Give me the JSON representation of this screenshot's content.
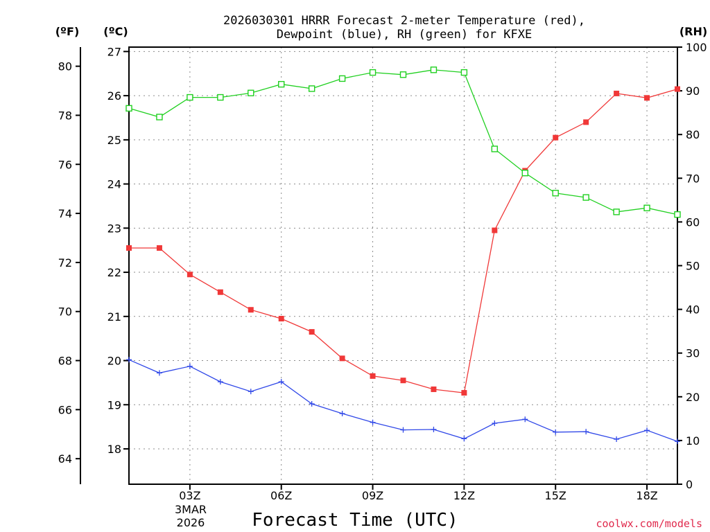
{
  "chart_data": {
    "type": "line",
    "title_line1": "2026030301 HRRR Forecast 2-meter Temperature (red),",
    "title_line2": "Dewpoint (blue), RH (green) for KFXE",
    "xlabel": "Forecast Time (UTC)",
    "credit": "coolwx.com/models",
    "left_unit_f": "(ºF)",
    "left_unit_c": "(ºC)",
    "right_unit": "(RH)",
    "x": [
      1,
      2,
      3,
      4,
      5,
      6,
      7,
      8,
      9,
      10,
      11,
      12,
      13,
      14,
      15,
      16,
      17,
      18,
      19
    ],
    "xlim": [
      1,
      19
    ],
    "x_ticks": [
      {
        "x": 3,
        "label": "03Z"
      },
      {
        "x": 6,
        "label": "06Z"
      },
      {
        "x": 9,
        "label": "09Z"
      },
      {
        "x": 12,
        "label": "12Z"
      },
      {
        "x": 15,
        "label": "15Z"
      },
      {
        "x": 18,
        "label": "18Z"
      }
    ],
    "date_label_1": "3MAR",
    "date_label_2": "2026",
    "celsius_axis": {
      "ylim": [
        17.2,
        27.1
      ],
      "ticks": [
        18,
        19,
        20,
        21,
        22,
        23,
        24,
        25,
        26,
        27
      ]
    },
    "fahrenheit_axis": {
      "ticks": [
        64,
        66,
        68,
        70,
        72,
        74,
        76,
        78,
        80
      ]
    },
    "rh_axis": {
      "ylim": [
        0,
        100
      ],
      "ticks": [
        0,
        10,
        20,
        30,
        40,
        50,
        60,
        70,
        80,
        90,
        100
      ]
    },
    "series": [
      {
        "name": "Temperature",
        "axis": "celsius",
        "color": "#f03838",
        "marker": "filled-square",
        "values": [
          22.55,
          22.55,
          21.95,
          21.55,
          21.15,
          20.95,
          20.65,
          20.05,
          19.65,
          19.55,
          19.35,
          19.27,
          22.95,
          24.3,
          25.05,
          25.4,
          26.05,
          25.95,
          26.15
        ]
      },
      {
        "name": "Dewpoint",
        "axis": "celsius",
        "color": "#3048e8",
        "marker": "plus",
        "values": [
          20.02,
          19.72,
          19.87,
          19.52,
          19.3,
          19.52,
          19.02,
          18.8,
          18.6,
          18.43,
          18.44,
          18.23,
          18.58,
          18.67,
          18.38,
          18.39,
          18.22,
          18.42,
          18.17
        ]
      },
      {
        "name": "RH",
        "axis": "rh",
        "color": "#20d020",
        "marker": "open-square",
        "values": [
          86,
          84,
          88.5,
          88.5,
          89.5,
          91.5,
          90.5,
          92.8,
          94.2,
          93.7,
          94.8,
          94.2,
          76.7,
          71.2,
          66.6,
          65.6,
          62.3,
          63.2,
          61.7
        ]
      }
    ]
  }
}
